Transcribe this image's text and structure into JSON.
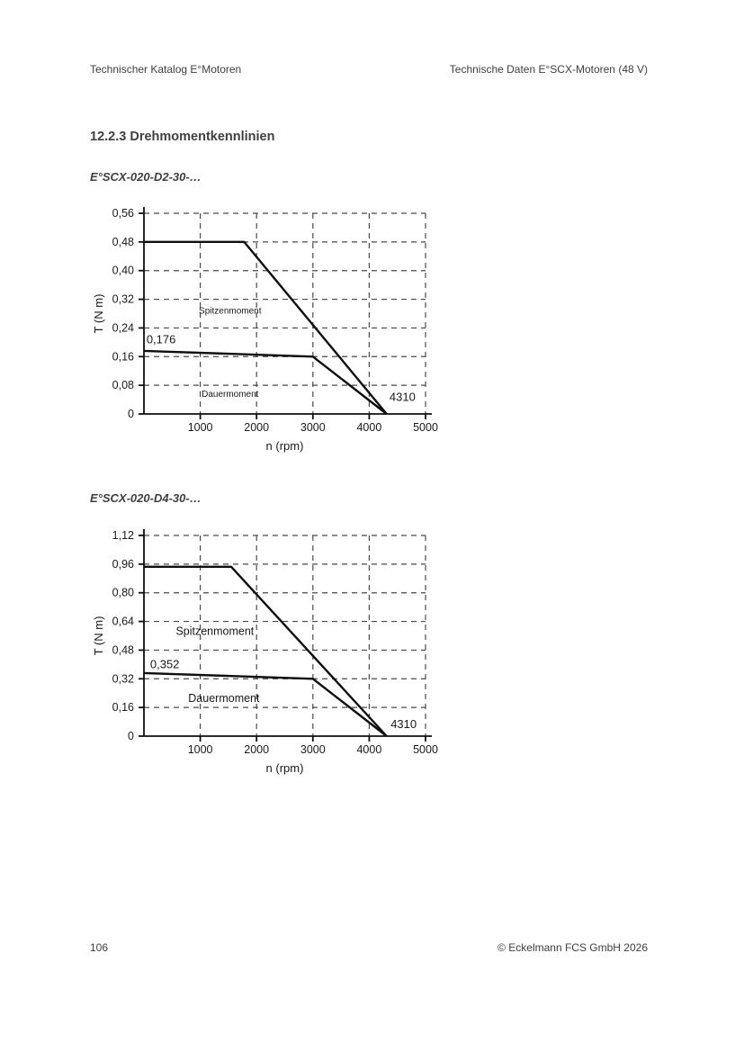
{
  "header": {
    "left": "Technischer Katalog E°Motoren",
    "right": "Technische Daten E°SCX-Motoren (48 V)"
  },
  "section": {
    "heading": "12.2.3 Drehmomentkennlinien"
  },
  "chart_data": [
    {
      "type": "line",
      "title": "E°SCX-020-D2-30-…",
      "xlabel": "n (rpm)",
      "ylabel": "T (N m)",
      "xlim": [
        0,
        5000
      ],
      "ylim": [
        0,
        0.56
      ],
      "grid": "dashed",
      "legend": "inline-labels",
      "xticks": [
        {
          "v": 1000,
          "label": "1000"
        },
        {
          "v": 2000,
          "label": "2000"
        },
        {
          "v": 3000,
          "label": "3000"
        },
        {
          "v": 4000,
          "label": "4000"
        },
        {
          "v": 5000,
          "label": "5000"
        }
      ],
      "yticks": [
        {
          "v": 0,
          "label": "0"
        },
        {
          "v": 0.08,
          "label": "0,08"
        },
        {
          "v": 0.16,
          "label": "0,16"
        },
        {
          "v": 0.24,
          "label": "0,24"
        },
        {
          "v": 0.32,
          "label": "0,32"
        },
        {
          "v": 0.4,
          "label": "0,40"
        },
        {
          "v": 0.48,
          "label": "0,48"
        },
        {
          "v": 0.56,
          "label": "0,56"
        }
      ],
      "series": [
        {
          "name": "Spitzenmoment",
          "points": [
            [
              0,
              0.48
            ],
            [
              1780,
              0.48
            ],
            [
              4310,
              0
            ]
          ]
        },
        {
          "name": "Dauermoment",
          "points": [
            [
              0,
              0.176
            ],
            [
              3000,
              0.16
            ],
            [
              4310,
              0
            ]
          ]
        }
      ],
      "annotations": [
        {
          "role": "value",
          "text": "0,176",
          "x": 45,
          "y": 0.207,
          "anchor": "start"
        },
        {
          "role": "value",
          "text": "4310",
          "x": 4360,
          "y": 0.047,
          "anchor": "start"
        },
        {
          "role": "series",
          "text": "Spitzenmoment",
          "x": 1530,
          "y": 0.29,
          "anchor": "middle"
        },
        {
          "role": "series",
          "text": "Dauermoment",
          "x": 1530,
          "y": 0.058,
          "anchor": "middle"
        }
      ]
    },
    {
      "type": "line",
      "title": "E°SCX-020-D4-30-…",
      "xlabel": "n (rpm)",
      "ylabel": "T (N m)",
      "xlim": [
        0,
        5000
      ],
      "ylim": [
        0,
        1.12
      ],
      "grid": "dashed",
      "legend": "inline-labels",
      "xticks": [
        {
          "v": 1000,
          "label": "1000"
        },
        {
          "v": 2000,
          "label": "2000"
        },
        {
          "v": 3000,
          "label": "3000"
        },
        {
          "v": 4000,
          "label": "4000"
        },
        {
          "v": 5000,
          "label": "5000"
        }
      ],
      "yticks": [
        {
          "v": 0,
          "label": "0"
        },
        {
          "v": 0.16,
          "label": "0,16"
        },
        {
          "v": 0.32,
          "label": "0,32"
        },
        {
          "v": 0.48,
          "label": "0,48"
        },
        {
          "v": 0.64,
          "label": "0,64"
        },
        {
          "v": 0.8,
          "label": "0,80"
        },
        {
          "v": 0.96,
          "label": "0,96"
        },
        {
          "v": 1.12,
          "label": "1,12"
        }
      ],
      "series": [
        {
          "name": "Spitzenmoment",
          "points": [
            [
              0,
              0.945
            ],
            [
              1550,
              0.945
            ],
            [
              4310,
              0
            ]
          ]
        },
        {
          "name": "Dauermoment",
          "points": [
            [
              0,
              0.352
            ],
            [
              3000,
              0.32
            ],
            [
              4310,
              0
            ]
          ]
        }
      ],
      "annotations": [
        {
          "role": "value",
          "text": "0,352",
          "x": 110,
          "y": 0.4,
          "anchor": "start"
        },
        {
          "role": "value",
          "text": "4310",
          "x": 4380,
          "y": 0.065,
          "anchor": "start"
        },
        {
          "role": "series",
          "text": "Spitzenmoment",
          "x": 1260,
          "y": 0.585,
          "anchor": "middle"
        },
        {
          "role": "series",
          "text": "Dauermoment",
          "x": 1420,
          "y": 0.21,
          "anchor": "middle"
        }
      ]
    }
  ],
  "footer": {
    "page_number": "106",
    "copyright": "© Eckelmann FCS GmbH 2026"
  },
  "colors": {
    "background": "#ffffff",
    "page_text": "#3f3f3e",
    "chart_text": "#1a1a1a",
    "series_line": "#0f0f0f",
    "axis_line": "#0f0f0f",
    "grid_line": "#4a4a4a"
  }
}
